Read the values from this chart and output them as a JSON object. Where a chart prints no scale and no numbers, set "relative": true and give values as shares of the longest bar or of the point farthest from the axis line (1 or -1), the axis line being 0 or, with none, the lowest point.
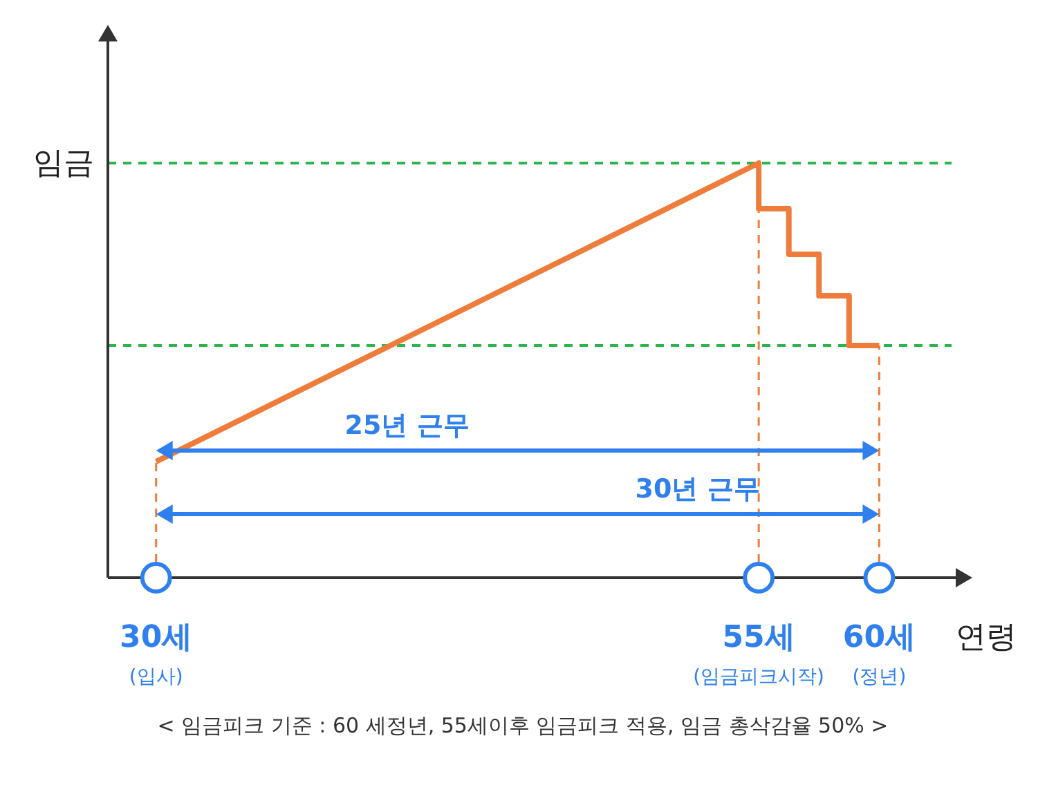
{
  "chart_data": {
    "type": "line",
    "relative": true,
    "xlabel": "연령",
    "ylabel": "임금",
    "x": [
      30,
      55,
      55,
      56.25,
      56.25,
      57.5,
      57.5,
      58.75,
      58.75,
      60
    ],
    "series": [
      {
        "color": "#ee7d3b",
        "values": [
          0.28,
          1,
          0.89,
          0.89,
          0.78,
          0.78,
          0.68,
          0.68,
          0.56,
          0.56
        ]
      }
    ],
    "xlim": [
      28,
      63
    ],
    "xticks": [
      {
        "value": 30,
        "label": "30세\n(입사)"
      },
      {
        "value": 55,
        "label": "55세\n(임금피크시작)"
      },
      {
        "value": 60,
        "label": "60세\n(정년)"
      }
    ],
    "ref_lines": [
      {
        "axis": "y",
        "value": 1,
        "color": "#2bb54b",
        "line_style": "dashed"
      },
      {
        "axis": "y",
        "value": 0.56,
        "color": "#2bb54b",
        "line_style": "dashed"
      },
      {
        "axis": "x",
        "value": 30,
        "color": "#ee7d3b",
        "line_style": "dashed"
      },
      {
        "axis": "x",
        "value": 55,
        "color": "#ee7d3b",
        "line_style": "dashed"
      },
      {
        "axis": "x",
        "value": 60,
        "color": "#ee7d3b",
        "line_style": "dashed"
      }
    ],
    "annotations": [
      "25년 근무",
      "30년 근무",
      "< 임금피크 기준 : 60 세정년, 55세이후 임금피크 적용, 임금 총삭감율 50% >"
    ],
    "grid": false,
    "legend": false,
    "marker": "none",
    "line_style": "solid"
  }
}
